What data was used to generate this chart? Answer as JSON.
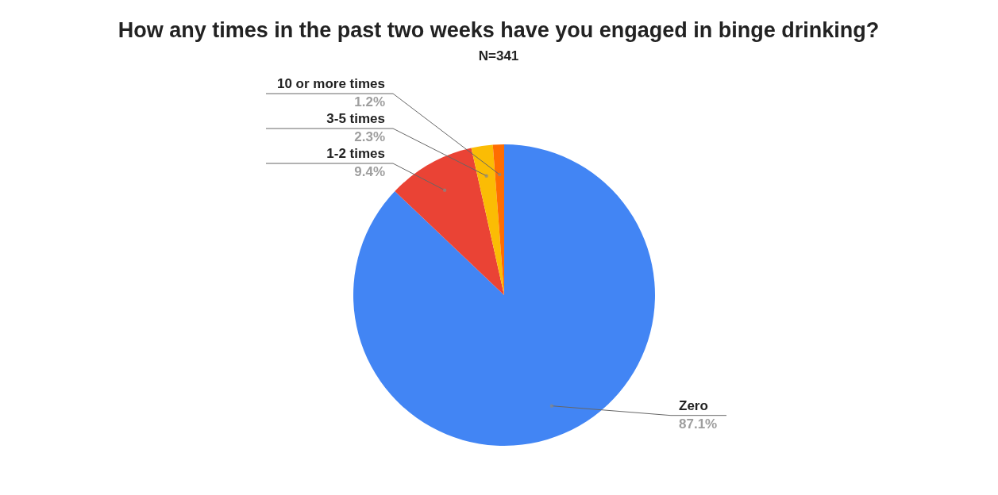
{
  "chart_data": {
    "type": "pie",
    "title": "How any times in the past two weeks have you engaged in binge drinking?",
    "subtitle": "N=341",
    "categories": [
      "Zero",
      "1-2 times",
      "3-5 times",
      "10 or more times"
    ],
    "values": [
      87.1,
      9.4,
      2.3,
      1.2
    ],
    "colors": [
      "#4285f4",
      "#ea4335",
      "#fbbc04",
      "#ff6d01"
    ],
    "value_labels": [
      "87.1%",
      "9.4%",
      "2.3%",
      "1.2%"
    ],
    "legend": false
  }
}
